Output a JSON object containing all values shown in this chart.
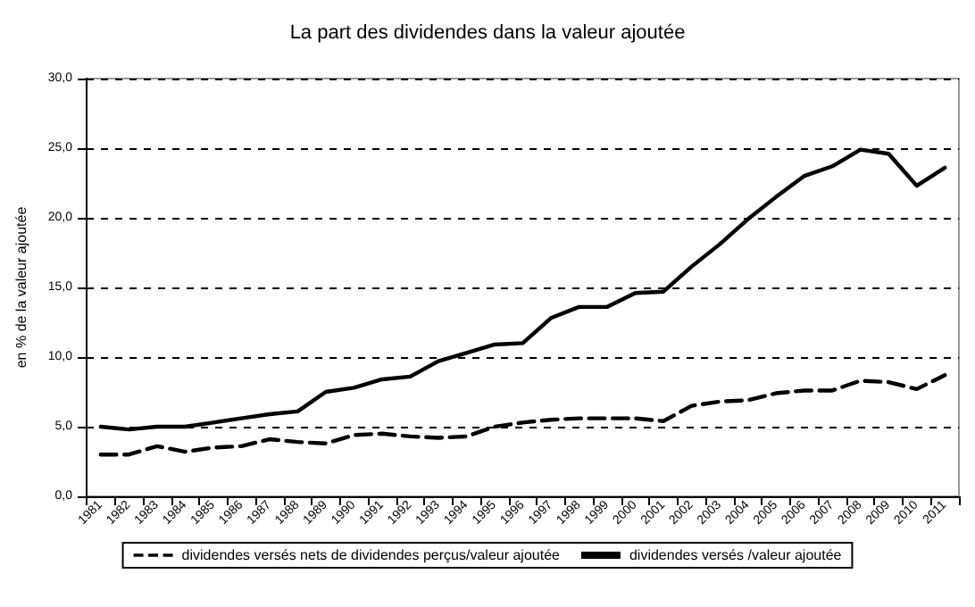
{
  "chart_data": {
    "type": "line",
    "title": "La part des dividendes dans la valeur ajoutée",
    "ylabel": "en % de la valeur ajoutée",
    "categories": [
      "1981",
      "1982",
      "1983",
      "1984",
      "1985",
      "1986",
      "1987",
      "1988",
      "1989",
      "1990",
      "1991",
      "1992",
      "1993",
      "1994",
      "1995",
      "1996",
      "1997",
      "1998",
      "1999",
      "2000",
      "2001",
      "2002",
      "2003",
      "2004",
      "2005",
      "2006",
      "2007",
      "2008",
      "2009",
      "2010",
      "2011"
    ],
    "series": [
      {
        "name": "dividendes versés nets de dividendes perçus/valeur ajoutée",
        "color": "#000000",
        "line_style": "dashed",
        "values": [
          3.0,
          3.0,
          3.6,
          3.2,
          3.5,
          3.6,
          4.1,
          3.9,
          3.8,
          4.4,
          4.5,
          4.3,
          4.2,
          4.3,
          5.0,
          5.3,
          5.5,
          5.6,
          5.6,
          5.6,
          5.4,
          6.5,
          6.8,
          6.9,
          7.4,
          7.6,
          7.6,
          8.3,
          8.2,
          7.7,
          8.7
        ]
      },
      {
        "name": "dividendes versés /valeur ajoutée",
        "color": "#000000",
        "line_style": "solid",
        "values": [
          5.0,
          4.8,
          5.0,
          5.0,
          5.3,
          5.6,
          5.9,
          6.1,
          7.5,
          7.8,
          8.4,
          8.6,
          9.7,
          10.3,
          10.9,
          11.0,
          12.8,
          13.6,
          13.6,
          14.6,
          14.7,
          16.5,
          18.1,
          19.9,
          21.5,
          23.0,
          23.7,
          24.9,
          24.6,
          22.3,
          23.6
        ]
      }
    ],
    "ylim": [
      0,
      30
    ],
    "yticks": [
      {
        "value": 0,
        "label": "0,0"
      },
      {
        "value": 5,
        "label": "5,0"
      },
      {
        "value": 10,
        "label": "10,0"
      },
      {
        "value": 15,
        "label": "15,0"
      },
      {
        "value": 20,
        "label": "20,0"
      },
      {
        "value": 25,
        "label": "25,0"
      },
      {
        "value": 30,
        "label": "30,0"
      }
    ],
    "grid": "y",
    "legend": "bottom",
    "marker": "none"
  }
}
